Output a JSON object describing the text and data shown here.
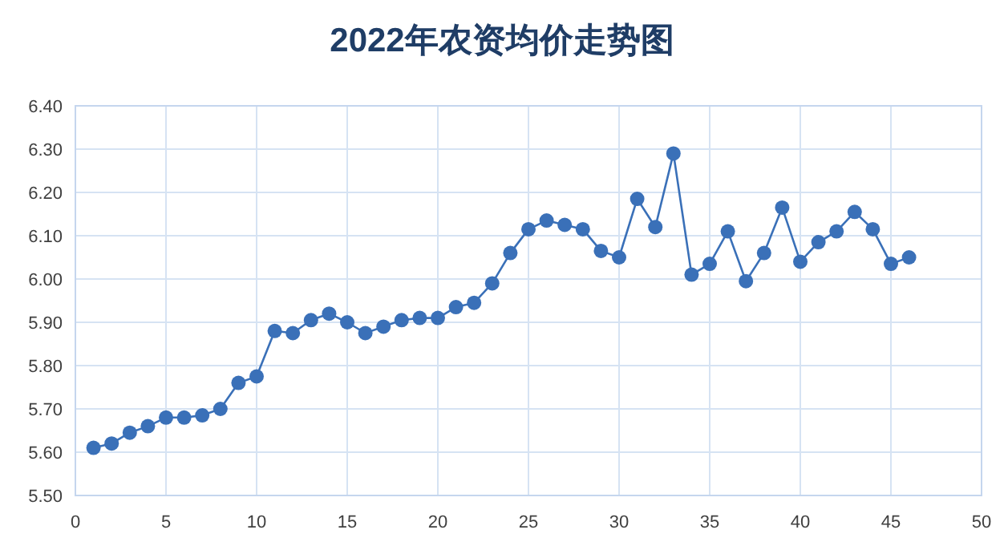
{
  "chart_data": {
    "type": "line",
    "title": "2022年农资均价走势图",
    "x": [
      1,
      2,
      3,
      4,
      5,
      6,
      7,
      8,
      9,
      10,
      11,
      12,
      13,
      14,
      15,
      16,
      17,
      18,
      19,
      20,
      21,
      22,
      23,
      24,
      25,
      26,
      27,
      28,
      29,
      30,
      31,
      32,
      33,
      34,
      35,
      36,
      37,
      38,
      39,
      40,
      41,
      42,
      43,
      44,
      45,
      46
    ],
    "series": [
      {
        "color": "#3a70b8",
        "values": [
          5.61,
          5.62,
          5.645,
          5.66,
          5.68,
          5.68,
          5.685,
          5.7,
          5.76,
          5.775,
          5.88,
          5.875,
          5.905,
          5.92,
          5.9,
          5.875,
          5.89,
          5.905,
          5.91,
          5.91,
          5.935,
          5.945,
          5.99,
          6.06,
          6.115,
          6.135,
          6.125,
          6.115,
          6.065,
          6.05,
          6.185,
          6.12,
          6.29,
          6.01,
          6.035,
          6.11,
          5.995,
          6.06,
          6.165,
          6.04,
          6.085,
          6.11,
          6.155,
          6.115,
          6.035,
          6.05
        ]
      }
    ],
    "xlim": [
      0,
      50
    ],
    "xticks": [
      0,
      5,
      10,
      15,
      20,
      25,
      30,
      35,
      40,
      45,
      50
    ],
    "ylim": [
      5.5,
      6.4
    ],
    "yticks": [
      {
        "value": 5.5,
        "label": "5.50"
      },
      {
        "value": 5.6,
        "label": "5.60"
      },
      {
        "value": 5.7,
        "label": "5.70"
      },
      {
        "value": 5.8,
        "label": "5.80"
      },
      {
        "value": 5.9,
        "label": "5.90"
      },
      {
        "value": 6.0,
        "label": "6.00"
      },
      {
        "value": 6.1,
        "label": "6.10"
      },
      {
        "value": 6.2,
        "label": "6.20"
      },
      {
        "value": 6.3,
        "label": "6.30"
      },
      {
        "value": 6.4,
        "label": "6.40"
      }
    ],
    "grid": true,
    "marker": "circle",
    "line_style": "solid"
  }
}
